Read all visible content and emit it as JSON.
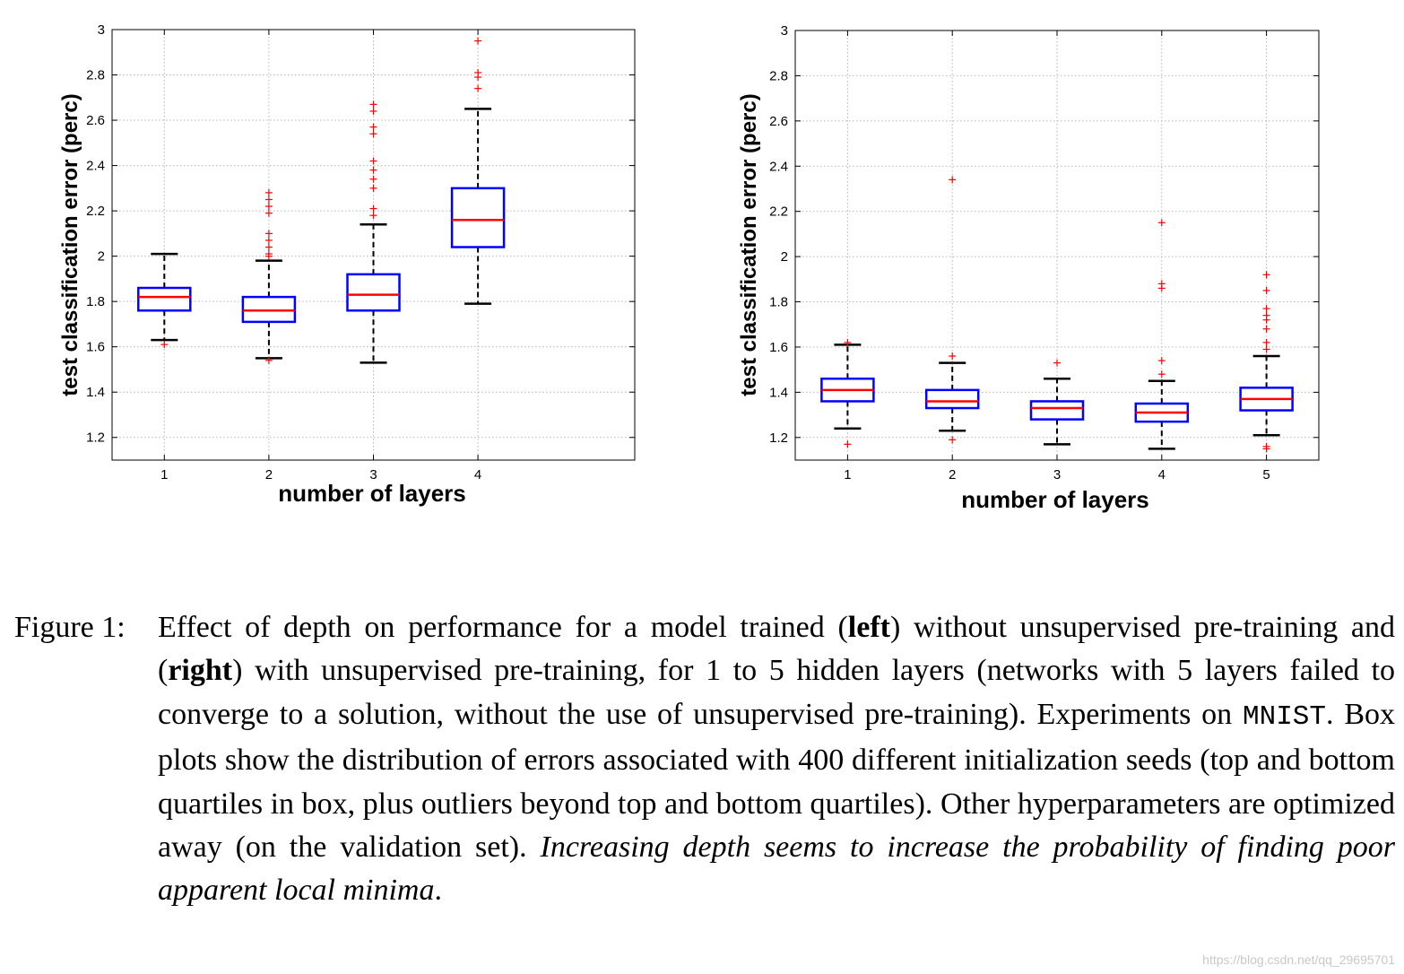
{
  "chart_data": [
    {
      "type": "box",
      "panel": "left",
      "xlabel": "number of layers",
      "ylabel": "test classification error (perc)",
      "xlim": [
        0.5,
        5.5
      ],
      "ylim": [
        1.1,
        3.0
      ],
      "yticks": [
        1.2,
        1.4,
        1.6,
        1.8,
        2,
        2.2,
        2.4,
        2.6,
        2.8,
        3
      ],
      "ytick_labels": [
        "1.2",
        "1.4",
        "1.6",
        "1.8",
        "2",
        "2.2",
        "2.4",
        "2.6",
        "2.8",
        "3"
      ],
      "grid": true,
      "categories": [
        "1",
        "2",
        "3",
        "4"
      ],
      "boxes": [
        {
          "x": 1,
          "q1": 1.76,
          "median": 1.82,
          "q3": 1.86,
          "whisker_low": 1.63,
          "whisker_high": 2.01,
          "outliers": [
            1.61
          ]
        },
        {
          "x": 2,
          "q1": 1.71,
          "median": 1.76,
          "q3": 1.82,
          "whisker_low": 1.55,
          "whisker_high": 1.98,
          "outliers": [
            1.54,
            2.0,
            2.01,
            2.04,
            2.07,
            2.1,
            2.19,
            2.22,
            2.25,
            2.28
          ]
        },
        {
          "x": 3,
          "q1": 1.76,
          "median": 1.83,
          "q3": 1.92,
          "whisker_low": 1.53,
          "whisker_high": 2.14,
          "outliers": [
            2.18,
            2.21,
            2.3,
            2.34,
            2.38,
            2.42,
            2.54,
            2.57,
            2.64,
            2.67
          ]
        },
        {
          "x": 4,
          "q1": 2.04,
          "median": 2.16,
          "q3": 2.3,
          "whisker_low": 1.79,
          "whisker_high": 2.65,
          "outliers": [
            2.74,
            2.79,
            2.81,
            2.95
          ]
        }
      ]
    },
    {
      "type": "box",
      "panel": "right",
      "xlabel": "number of layers",
      "ylabel": "test classification error (perc)",
      "xlim": [
        0.5,
        5.5
      ],
      "ylim": [
        1.1,
        3.0
      ],
      "yticks": [
        1.2,
        1.4,
        1.6,
        1.8,
        2,
        2.2,
        2.4,
        2.6,
        2.8,
        3
      ],
      "ytick_labels": [
        "1.2",
        "1.4",
        "1.6",
        "1.8",
        "2",
        "2.2",
        "2.4",
        "2.6",
        "2.8",
        "3"
      ],
      "grid": true,
      "categories": [
        "1",
        "2",
        "3",
        "4",
        "5"
      ],
      "boxes": [
        {
          "x": 1,
          "q1": 1.36,
          "median": 1.41,
          "q3": 1.46,
          "whisker_low": 1.24,
          "whisker_high": 1.61,
          "outliers": [
            1.17,
            1.62
          ]
        },
        {
          "x": 2,
          "q1": 1.33,
          "median": 1.36,
          "q3": 1.41,
          "whisker_low": 1.23,
          "whisker_high": 1.53,
          "outliers": [
            1.19,
            1.56,
            2.34
          ]
        },
        {
          "x": 3,
          "q1": 1.28,
          "median": 1.33,
          "q3": 1.36,
          "whisker_low": 1.17,
          "whisker_high": 1.46,
          "outliers": [
            1.53
          ]
        },
        {
          "x": 4,
          "q1": 1.27,
          "median": 1.31,
          "q3": 1.35,
          "whisker_low": 1.15,
          "whisker_high": 1.45,
          "outliers": [
            1.48,
            1.54,
            1.86,
            1.88,
            2.15
          ]
        },
        {
          "x": 5,
          "q1": 1.32,
          "median": 1.37,
          "q3": 1.42,
          "whisker_low": 1.21,
          "whisker_high": 1.56,
          "outliers": [
            1.15,
            1.16,
            1.59,
            1.62,
            1.68,
            1.72,
            1.74,
            1.77,
            1.85,
            1.92
          ]
        }
      ]
    }
  ],
  "colors": {
    "box": "#0000ff",
    "median": "#ff0000",
    "whisker": "#000000",
    "outlier": "#ff0000",
    "grid": "#b4b4b4"
  },
  "caption": {
    "label": "Figure 1:",
    "t1": "Effect of depth on performance for a model trained (",
    "b1": "left",
    "t2": ") without unsupervised pre-training and (",
    "b2": "right",
    "t3": ") with unsupervised pre-training, for 1 to 5 hidden layers (networks with 5 layers failed to converge to a solution, without the use of unsupervised pre-training). Experiments on ",
    "mono": "MNIST",
    "t4": ". Box plots show the distribution of errors associated with 400 different initialization seeds (top and bottom quartiles in box, plus outliers beyond top and bottom quartiles). Other hyperparameters are optimized away (on the validation set). ",
    "italic": "Increasing depth seems to increase the probability of finding poor apparent local minima",
    "t5": "."
  },
  "watermark": "https://blog.csdn.net/qq_29695701"
}
